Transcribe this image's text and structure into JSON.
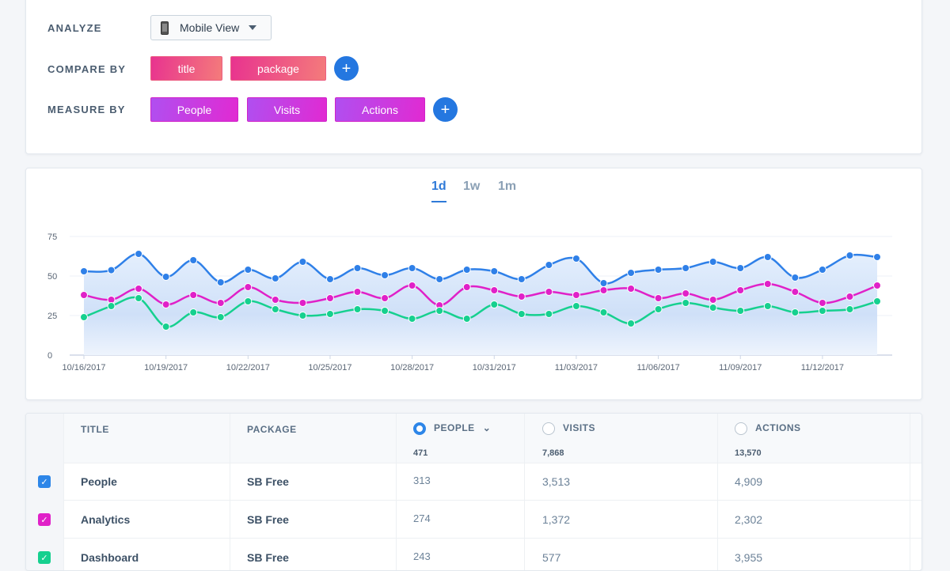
{
  "controls": {
    "analyze_label": "ANALYZE",
    "analyze_value": "Mobile View",
    "compare_label": "COMPARE BY",
    "compare_chips": [
      "title",
      "package"
    ],
    "measure_label": "MEASURE BY",
    "measure_chips": [
      "People",
      "Visits",
      "Actions"
    ],
    "add_symbol": "+"
  },
  "range_tabs": [
    "1d",
    "1w",
    "1m"
  ],
  "active_tab": "1d",
  "chart_data": {
    "type": "line",
    "x": [
      "10/16/2017",
      "10/17/2017",
      "10/18/2017",
      "10/19/2017",
      "10/20/2017",
      "10/21/2017",
      "10/22/2017",
      "10/23/2017",
      "10/24/2017",
      "10/25/2017",
      "10/26/2017",
      "10/27/2017",
      "10/28/2017",
      "10/29/2017",
      "10/30/2017",
      "10/31/2017",
      "11/01/2017",
      "11/02/2017",
      "11/03/2017",
      "11/04/2017",
      "11/05/2017",
      "11/06/2017",
      "11/07/2017",
      "11/08/2017",
      "11/09/2017",
      "11/10/2017",
      "11/11/2017",
      "11/12/2017",
      "11/13/2017",
      "11/14/2017"
    ],
    "x_tick_labels": [
      "10/16/2017",
      "10/19/2017",
      "10/22/2017",
      "10/25/2017",
      "10/28/2017",
      "10/31/2017",
      "11/03/2017",
      "11/06/2017",
      "11/09/2017",
      "11/12/2017"
    ],
    "y_ticks": [
      0,
      25,
      50,
      75
    ],
    "ylim": [
      0,
      75
    ],
    "grid": true,
    "series": [
      {
        "color": "#2f80e8",
        "area": true,
        "values": [
          53,
          53.7,
          64,
          49.5,
          60,
          46,
          54,
          48.5,
          59,
          48,
          55,
          50.5,
          55,
          48,
          54,
          53,
          48,
          57,
          61,
          45.5,
          52,
          54,
          55,
          59,
          55,
          62,
          49,
          54,
          63,
          62
        ]
      },
      {
        "color": "#e021c8",
        "values": [
          38,
          35,
          42,
          32,
          38,
          33,
          43,
          35,
          33,
          36,
          40,
          36,
          44,
          31.5,
          43,
          41,
          37,
          40,
          38,
          41,
          42,
          36,
          39,
          35,
          41,
          45,
          40,
          33,
          37,
          44
        ]
      },
      {
        "color": "#16d08f",
        "values": [
          24,
          31,
          36,
          18,
          27,
          24,
          34,
          29,
          25,
          26,
          29,
          28,
          23,
          28,
          23,
          32,
          26,
          26,
          31,
          27,
          20,
          29,
          33,
          30,
          28,
          31,
          27,
          28,
          29,
          34
        ]
      }
    ]
  },
  "table": {
    "headers": [
      "TITLE",
      "PACKAGE",
      "PEOPLE",
      "VISITS",
      "ACTIONS"
    ],
    "totals": {
      "people": "471",
      "visits": "7,868",
      "actions": "13,570"
    },
    "rows": [
      {
        "title": "People",
        "package": "SB Free",
        "people": "313",
        "visits": "3,513",
        "actions": "4,909",
        "color": "#2d86e8"
      },
      {
        "title": "Analytics",
        "package": "SB Free",
        "people": "274",
        "visits": "1,372",
        "actions": "2,302",
        "color": "#e021c8"
      },
      {
        "title": "Dashboard",
        "package": "SB Free",
        "people": "243",
        "visits": "577",
        "actions": "3,955",
        "color": "#16d08f"
      }
    ]
  }
}
